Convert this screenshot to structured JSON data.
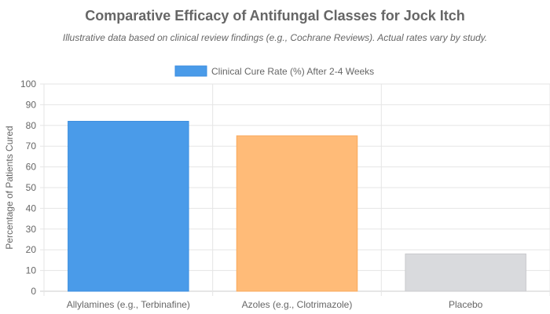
{
  "chart_data": {
    "type": "bar",
    "title": "Comparative Efficacy of Antifungal Classes for Jock Itch",
    "subtitle": "Illustrative data based on clinical review findings (e.g., Cochrane Reviews). Actual rates vary by study.",
    "categories": [
      "Allylamines (e.g., Terbinafine)",
      "Azoles (e.g., Clotrimazole)",
      "Placebo"
    ],
    "series": [
      {
        "name": "Clinical Cure Rate (%) After 2-4 Weeks",
        "values": [
          82,
          75,
          18
        ]
      }
    ],
    "bar_colors": [
      "#4a9be9",
      "#ffbb78",
      "#d9dadd"
    ],
    "bar_borders": [
      "#3b8ee0",
      "#f9a95c",
      "#c9cacd"
    ],
    "xlabel": "",
    "ylabel": "Percentage of Patients Cured",
    "ylim": [
      0,
      100
    ],
    "yticks": [
      0,
      10,
      20,
      30,
      40,
      50,
      60,
      70,
      80,
      90,
      100
    ],
    "grid": true,
    "legend_position": "top"
  }
}
